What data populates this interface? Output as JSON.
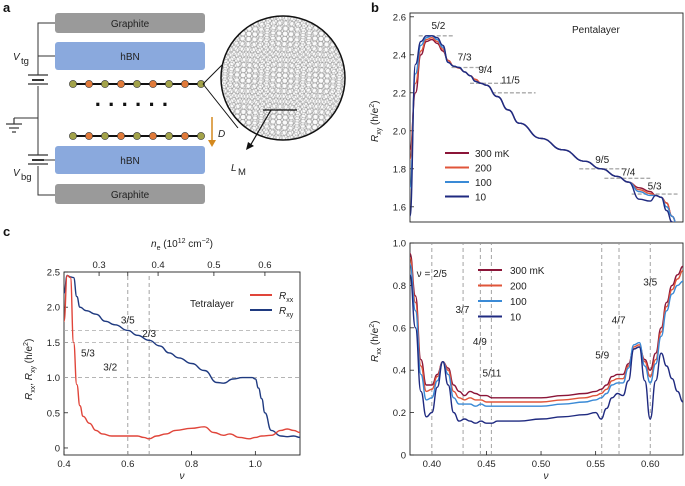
{
  "panel_labels": {
    "a": "a",
    "b": "b",
    "c": "c"
  },
  "schematic": {
    "graphite_top": "Graphite",
    "hbn_top": "hBN",
    "hbn_bottom": "hBN",
    "graphite_bottom": "Graphite",
    "vtg": "V",
    "vtg_sub": "tg",
    "vbg": "V",
    "vbg_sub": "bg",
    "dots": "· · · · · ·",
    "d_label": "D",
    "lm_label": "L",
    "lm_sub": "M"
  },
  "colors": {
    "mK300": "#8b1538",
    "mK200": "#e0553a",
    "mK100": "#3a8ad6",
    "mK10": "#1f2a80",
    "rxx": "#e0453a",
    "rxy": "#1f3a80",
    "hbn": "#8aa9dd",
    "graphite": "#9a9a9a"
  },
  "chart_data": [
    {
      "id": "b_top",
      "type": "line",
      "title": "Pentalayer",
      "xlabel": "",
      "ylabel": "R_xy (h/e²)",
      "ylabel_main": "R",
      "ylabel_sub": "xy",
      "ylabel_unit": " (h/e",
      "ylabel_sup": "2",
      "ylabel_close": ")",
      "xlim": [
        0.38,
        0.63
      ],
      "ylim": [
        1.52,
        2.62
      ],
      "yticks": [
        1.6,
        1.8,
        2.0,
        2.2,
        2.4,
        2.6
      ],
      "ytick_labels": [
        "1.6",
        "1.8",
        "2.0",
        "2.2",
        "2.4",
        "2.6"
      ],
      "legend": [
        "300 mK",
        "200",
        "100",
        "10"
      ],
      "legend_position": "left-middle",
      "annotations": [
        {
          "label": "5/2",
          "x": 0.406,
          "y": 2.535
        },
        {
          "label": "7/3",
          "x": 0.43,
          "y": 2.37
        },
        {
          "label": "9/4",
          "x": 0.449,
          "y": 2.305
        },
        {
          "label": "11/5",
          "x": 0.472,
          "y": 2.25
        },
        {
          "label": "9/5",
          "x": 0.556,
          "y": 1.83
        },
        {
          "label": "7/4",
          "x": 0.58,
          "y": 1.765
        },
        {
          "label": "5/3",
          "x": 0.604,
          "y": 1.69
        }
      ],
      "plateaus": [
        {
          "x": [
            0.388,
            0.42
          ],
          "y": 2.5
        },
        {
          "x": [
            0.418,
            0.45
          ],
          "y": 2.333
        },
        {
          "x": [
            0.435,
            0.465
          ],
          "y": 2.25
        },
        {
          "x": [
            0.455,
            0.495
          ],
          "y": 2.2
        },
        {
          "x": [
            0.535,
            0.575
          ],
          "y": 1.8
        },
        {
          "x": [
            0.558,
            0.6
          ],
          "y": 1.75
        },
        {
          "x": [
            0.583,
            0.625
          ],
          "y": 1.667
        }
      ],
      "series": [
        {
          "name": "300 mK",
          "x": [
            0.38,
            0.385,
            0.39,
            0.395,
            0.4,
            0.405,
            0.41,
            0.415,
            0.42,
            0.425,
            0.43,
            0.435,
            0.44,
            0.445,
            0.45,
            0.46,
            0.47,
            0.48,
            0.5,
            0.52,
            0.54,
            0.555,
            0.57,
            0.58,
            0.59,
            0.6,
            0.605,
            0.61,
            0.615,
            0.62,
            0.625,
            0.63
          ],
          "values": [
            1.9,
            2.2,
            2.4,
            2.47,
            2.48,
            2.46,
            2.42,
            2.37,
            2.34,
            2.33,
            2.31,
            2.29,
            2.27,
            2.25,
            2.24,
            2.18,
            2.11,
            2.04,
            1.96,
            1.9,
            1.84,
            1.8,
            1.76,
            1.73,
            1.7,
            1.68,
            1.66,
            1.65,
            1.62,
            1.55,
            1.5,
            1.47
          ]
        },
        {
          "name": "200",
          "x": [
            0.38,
            0.385,
            0.39,
            0.395,
            0.4,
            0.405,
            0.41,
            0.415,
            0.42,
            0.425,
            0.43,
            0.435,
            0.44,
            0.445,
            0.45,
            0.46,
            0.47,
            0.48,
            0.5,
            0.52,
            0.54,
            0.555,
            0.57,
            0.58,
            0.59,
            0.6,
            0.605,
            0.61,
            0.615,
            0.62,
            0.625,
            0.63
          ],
          "values": [
            1.85,
            2.25,
            2.42,
            2.48,
            2.49,
            2.47,
            2.43,
            2.37,
            2.34,
            2.33,
            2.31,
            2.29,
            2.27,
            2.25,
            2.24,
            2.18,
            2.11,
            2.04,
            1.96,
            1.9,
            1.84,
            1.8,
            1.76,
            1.73,
            1.69,
            1.67,
            1.66,
            1.65,
            1.62,
            1.55,
            1.5,
            1.47
          ]
        },
        {
          "name": "100",
          "x": [
            0.38,
            0.385,
            0.39,
            0.395,
            0.4,
            0.405,
            0.41,
            0.415,
            0.42,
            0.425,
            0.43,
            0.435,
            0.44,
            0.445,
            0.45,
            0.46,
            0.47,
            0.48,
            0.5,
            0.52,
            0.54,
            0.555,
            0.57,
            0.58,
            0.59,
            0.6,
            0.605,
            0.61,
            0.615,
            0.62,
            0.625,
            0.63
          ],
          "values": [
            1.7,
            2.3,
            2.45,
            2.49,
            2.5,
            2.48,
            2.44,
            2.36,
            2.34,
            2.333,
            2.31,
            2.29,
            2.26,
            2.25,
            2.24,
            2.18,
            2.11,
            2.04,
            1.96,
            1.9,
            1.84,
            1.8,
            1.76,
            1.73,
            1.68,
            1.66,
            1.66,
            1.65,
            1.6,
            1.55,
            1.5,
            1.47
          ]
        },
        {
          "name": "10",
          "x": [
            0.38,
            0.385,
            0.39,
            0.395,
            0.4,
            0.405,
            0.41,
            0.415,
            0.42,
            0.425,
            0.43,
            0.435,
            0.44,
            0.445,
            0.45,
            0.46,
            0.47,
            0.48,
            0.5,
            0.52,
            0.54,
            0.555,
            0.57,
            0.58,
            0.59,
            0.6,
            0.605,
            0.61,
            0.615,
            0.62,
            0.625,
            0.63
          ],
          "values": [
            1.55,
            2.35,
            2.47,
            2.5,
            2.5,
            2.49,
            2.45,
            2.36,
            2.34,
            2.333,
            2.31,
            2.29,
            2.26,
            2.25,
            2.24,
            2.18,
            2.11,
            2.04,
            1.96,
            1.9,
            1.84,
            1.8,
            1.76,
            1.73,
            1.64,
            1.63,
            1.66,
            1.65,
            1.58,
            1.52,
            1.48,
            1.46
          ]
        }
      ]
    },
    {
      "id": "b_bottom",
      "type": "line",
      "xlabel": "ν",
      "ylabel": "R_xx (h/e²)",
      "ylabel_main": "R",
      "ylabel_sub": "xx",
      "ylabel_unit": " (h/e",
      "ylabel_sup": "2",
      "ylabel_close": ")",
      "xlim": [
        0.38,
        0.63
      ],
      "ylim": [
        0.0,
        1.0
      ],
      "xticks": [
        0.4,
        0.45,
        0.5,
        0.55,
        0.6
      ],
      "xtick_labels": [
        "0.40",
        "0.45",
        "0.50",
        "0.55",
        "0.60"
      ],
      "yticks": [
        0.0,
        0.2,
        0.4,
        0.6,
        0.8,
        1.0
      ],
      "ytick_labels": [
        "0",
        "0.2",
        "0.4",
        "0.6",
        "0.8",
        "1.0"
      ],
      "legend": [
        "300 mK",
        "200",
        "100",
        "10"
      ],
      "legend_position": "top-right",
      "annotations": [
        {
          "label": "ν = 2/5",
          "x": 0.4,
          "y": 0.84
        },
        {
          "label": "3/7",
          "x": 0.428,
          "y": 0.67
        },
        {
          "label": "4/9",
          "x": 0.444,
          "y": 0.52
        },
        {
          "label": "5/11",
          "x": 0.455,
          "y": 0.37
        },
        {
          "label": "5/9",
          "x": 0.556,
          "y": 0.455
        },
        {
          "label": "4/7",
          "x": 0.571,
          "y": 0.62
        },
        {
          "label": "3/5",
          "x": 0.6,
          "y": 0.8
        }
      ],
      "vlines": [
        0.4,
        0.4286,
        0.4444,
        0.4545,
        0.5556,
        0.5714,
        0.6
      ],
      "series": [
        {
          "name": "300 mK",
          "x": [
            0.38,
            0.385,
            0.39,
            0.395,
            0.4,
            0.405,
            0.41,
            0.415,
            0.42,
            0.425,
            0.43,
            0.435,
            0.44,
            0.445,
            0.45,
            0.455,
            0.46,
            0.47,
            0.48,
            0.5,
            0.52,
            0.54,
            0.55,
            0.555,
            0.56,
            0.565,
            0.57,
            0.575,
            0.58,
            0.585,
            0.59,
            0.595,
            0.6,
            0.605,
            0.61,
            0.615,
            0.62,
            0.625,
            0.63
          ],
          "values": [
            0.95,
            0.75,
            0.45,
            0.33,
            0.33,
            0.38,
            0.44,
            0.41,
            0.33,
            0.3,
            0.28,
            0.3,
            0.29,
            0.28,
            0.28,
            0.27,
            0.27,
            0.27,
            0.27,
            0.27,
            0.28,
            0.29,
            0.3,
            0.31,
            0.33,
            0.37,
            0.38,
            0.38,
            0.43,
            0.5,
            0.51,
            0.45,
            0.4,
            0.48,
            0.6,
            0.72,
            0.8,
            0.85,
            0.89
          ]
        },
        {
          "name": "200",
          "x": [
            0.38,
            0.385,
            0.39,
            0.395,
            0.4,
            0.405,
            0.41,
            0.415,
            0.42,
            0.425,
            0.43,
            0.435,
            0.44,
            0.445,
            0.45,
            0.455,
            0.46,
            0.47,
            0.48,
            0.5,
            0.52,
            0.54,
            0.55,
            0.555,
            0.56,
            0.565,
            0.57,
            0.575,
            0.58,
            0.585,
            0.59,
            0.595,
            0.6,
            0.605,
            0.61,
            0.615,
            0.62,
            0.625,
            0.63
          ],
          "values": [
            0.93,
            0.72,
            0.42,
            0.3,
            0.31,
            0.37,
            0.44,
            0.4,
            0.3,
            0.27,
            0.26,
            0.27,
            0.26,
            0.26,
            0.25,
            0.25,
            0.25,
            0.25,
            0.25,
            0.25,
            0.26,
            0.27,
            0.28,
            0.29,
            0.31,
            0.35,
            0.36,
            0.36,
            0.42,
            0.51,
            0.52,
            0.44,
            0.37,
            0.45,
            0.58,
            0.7,
            0.78,
            0.83,
            0.87
          ]
        },
        {
          "name": "100",
          "x": [
            0.38,
            0.385,
            0.39,
            0.395,
            0.4,
            0.405,
            0.41,
            0.415,
            0.42,
            0.425,
            0.43,
            0.435,
            0.44,
            0.445,
            0.45,
            0.455,
            0.46,
            0.47,
            0.48,
            0.5,
            0.52,
            0.54,
            0.55,
            0.555,
            0.56,
            0.565,
            0.57,
            0.575,
            0.58,
            0.585,
            0.59,
            0.595,
            0.6,
            0.605,
            0.61,
            0.615,
            0.62,
            0.625,
            0.63
          ],
          "values": [
            0.9,
            0.68,
            0.38,
            0.26,
            0.27,
            0.35,
            0.44,
            0.38,
            0.27,
            0.24,
            0.24,
            0.24,
            0.23,
            0.24,
            0.23,
            0.23,
            0.23,
            0.23,
            0.23,
            0.23,
            0.24,
            0.25,
            0.26,
            0.27,
            0.29,
            0.33,
            0.34,
            0.34,
            0.41,
            0.52,
            0.53,
            0.42,
            0.34,
            0.43,
            0.56,
            0.68,
            0.76,
            0.8,
            0.82
          ]
        },
        {
          "name": "10",
          "x": [
            0.38,
            0.385,
            0.39,
            0.395,
            0.4,
            0.405,
            0.41,
            0.415,
            0.42,
            0.425,
            0.43,
            0.435,
            0.44,
            0.445,
            0.45,
            0.455,
            0.46,
            0.47,
            0.48,
            0.5,
            0.52,
            0.54,
            0.55,
            0.555,
            0.56,
            0.565,
            0.57,
            0.575,
            0.58,
            0.585,
            0.59,
            0.595,
            0.6,
            0.605,
            0.61,
            0.615,
            0.62,
            0.625,
            0.63
          ],
          "values": [
            0.85,
            0.6,
            0.3,
            0.18,
            0.2,
            0.32,
            0.44,
            0.33,
            0.2,
            0.16,
            0.17,
            0.16,
            0.15,
            0.16,
            0.15,
            0.15,
            0.16,
            0.16,
            0.16,
            0.17,
            0.18,
            0.19,
            0.2,
            0.17,
            0.22,
            0.27,
            0.29,
            0.28,
            0.35,
            0.5,
            0.51,
            0.35,
            0.17,
            0.35,
            0.48,
            0.42,
            0.36,
            0.3,
            0.25
          ]
        }
      ]
    },
    {
      "id": "c",
      "type": "line",
      "title": "Tetralayer",
      "xlabel": "ν",
      "ylabel": "R_xx, R_xy (h/e²)",
      "ylabel_text": "R",
      "top_axis_label": "n",
      "top_axis_sub": "e",
      "top_axis_unit": " (10",
      "top_axis_sup": "12",
      "top_axis_unit2": " cm",
      "top_axis_sup2": "−2",
      "top_axis_close": ")",
      "xlim": [
        0.4,
        1.14
      ],
      "ylim": [
        -0.1,
        2.5
      ],
      "xticks": [
        0.4,
        0.6,
        0.8,
        1.0
      ],
      "xtick_labels": [
        "0.4",
        "0.6",
        "0.8",
        "1.0"
      ],
      "yticks": [
        0,
        0.5,
        1.0,
        1.5,
        2.0,
        2.5
      ],
      "ytick_labels": [
        "0",
        "0.5",
        "1.0",
        "1.5",
        "2.0",
        "2.5"
      ],
      "top_ticks_x": [
        0.51,
        0.6,
        0.695,
        0.87,
        1.03
      ],
      "top_tick_labels": [
        "0.3",
        "0.4",
        "0.5",
        "0.6"
      ],
      "top_tick_positions": [
        0.51,
        0.695,
        0.87,
        1.03
      ],
      "legend": [
        "R_xx",
        "R_xy"
      ],
      "legend_position": "top-right",
      "annotations": [
        {
          "label": "3/5",
          "x": 0.6,
          "y": 1.77
        },
        {
          "label": "2/3",
          "x": 0.667,
          "y": 1.58
        },
        {
          "label": "5/3",
          "x": 0.475,
          "y": 1.3
        },
        {
          "label": "3/2",
          "x": 0.545,
          "y": 1.1
        }
      ],
      "hlines": [
        1.667,
        1.5,
        1.0
      ],
      "vlines": [
        0.6,
        0.667
      ],
      "series": [
        {
          "name": "R_xy",
          "x": [
            0.4,
            0.41,
            0.42,
            0.43,
            0.44,
            0.45,
            0.47,
            0.5,
            0.53,
            0.56,
            0.6,
            0.63,
            0.667,
            0.7,
            0.73,
            0.76,
            0.8,
            0.84,
            0.88,
            0.9,
            0.93,
            0.96,
            0.99,
            1.0,
            1.01,
            1.02,
            1.03,
            1.05,
            1.08,
            1.1,
            1.12,
            1.14
          ],
          "values": [
            2.2,
            2.45,
            2.43,
            2.42,
            2.15,
            2.0,
            1.95,
            1.9,
            1.8,
            1.75,
            1.67,
            1.6,
            1.53,
            1.45,
            1.35,
            1.28,
            1.2,
            1.1,
            0.93,
            0.92,
            0.98,
            1.0,
            1.0,
            0.98,
            0.85,
            0.7,
            0.5,
            0.25,
            0.17,
            0.16,
            0.17,
            0.15
          ]
        },
        {
          "name": "R_xx",
          "x": [
            0.4,
            0.41,
            0.42,
            0.43,
            0.44,
            0.45,
            0.46,
            0.48,
            0.5,
            0.52,
            0.55,
            0.6,
            0.63,
            0.65,
            0.667,
            0.69,
            0.72,
            0.75,
            0.8,
            0.84,
            0.87,
            0.9,
            0.92,
            0.95,
            0.98,
            1.0,
            1.02,
            1.05,
            1.08,
            1.1,
            1.12,
            1.14
          ],
          "values": [
            1.8,
            2.45,
            2.42,
            1.5,
            0.9,
            0.6,
            0.45,
            0.35,
            0.25,
            0.2,
            0.17,
            0.17,
            0.17,
            0.15,
            0.13,
            0.17,
            0.2,
            0.25,
            0.28,
            0.3,
            0.22,
            0.18,
            0.2,
            0.15,
            0.13,
            0.15,
            0.17,
            0.18,
            0.25,
            0.27,
            0.25,
            0.22
          ]
        }
      ]
    }
  ]
}
